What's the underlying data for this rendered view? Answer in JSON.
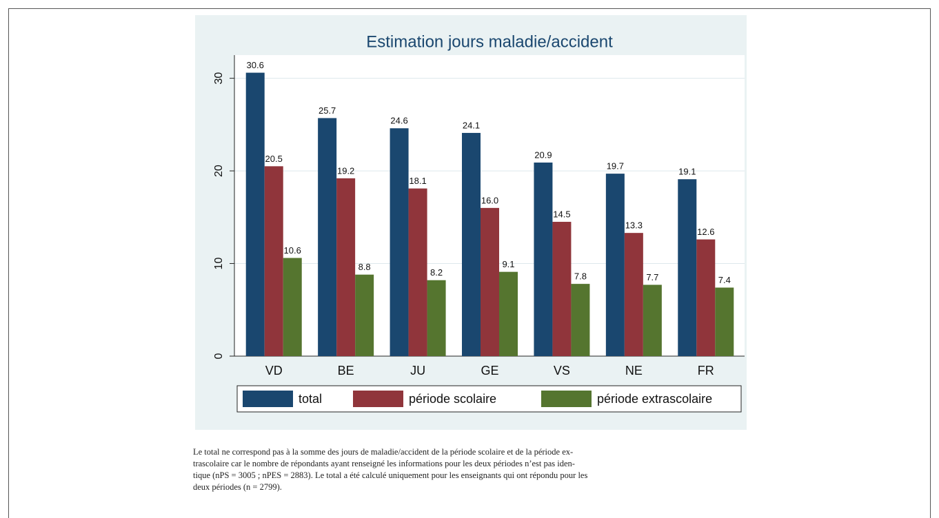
{
  "chart_data": {
    "type": "bar",
    "title": "Estimation jours maladie/accident",
    "categories": [
      "VD",
      "BE",
      "JU",
      "GE",
      "VS",
      "NE",
      "FR"
    ],
    "series": [
      {
        "name": "total",
        "color": "#1a476f",
        "values": [
          30.6,
          25.7,
          24.6,
          24.1,
          20.9,
          19.7,
          19.1
        ],
        "value_labels": [
          "30.6",
          "25.7",
          "24.6",
          "24.1",
          "20.9",
          "19.7",
          "19.1"
        ]
      },
      {
        "name": "période scolaire",
        "color": "#90353b",
        "values": [
          20.5,
          19.2,
          18.1,
          16.0,
          14.5,
          13.3,
          12.6
        ],
        "value_labels": [
          "20.5",
          "19.2",
          "18.1",
          "16.0",
          "14.5",
          "13.3",
          "12.6"
        ]
      },
      {
        "name": "période extrascolaire",
        "color": "#55752f",
        "values": [
          10.6,
          8.8,
          8.2,
          9.1,
          7.8,
          7.7,
          7.4
        ],
        "value_labels": [
          "10.6",
          "8.8",
          "8.2",
          "9.1",
          "7.8",
          "7.7",
          "7.4"
        ]
      }
    ],
    "ylim": [
      0,
      32.5
    ],
    "yticks": [
      0,
      10,
      20,
      30
    ],
    "grid": true
  },
  "note": [
    "Le total ne correspond pas à la somme des jours de maladie/accident de la période scolaire et de la période ex-",
    "trascolaire car le nombre de répondants ayant renseigné les informations pour les deux périodes n’est pas iden-",
    "tique (nPS = 3005 ; nPES = 2883). Le total a été calculé uniquement pour les enseignants qui ont répondu pour les",
    "deux périodes (n = 2799)."
  ]
}
